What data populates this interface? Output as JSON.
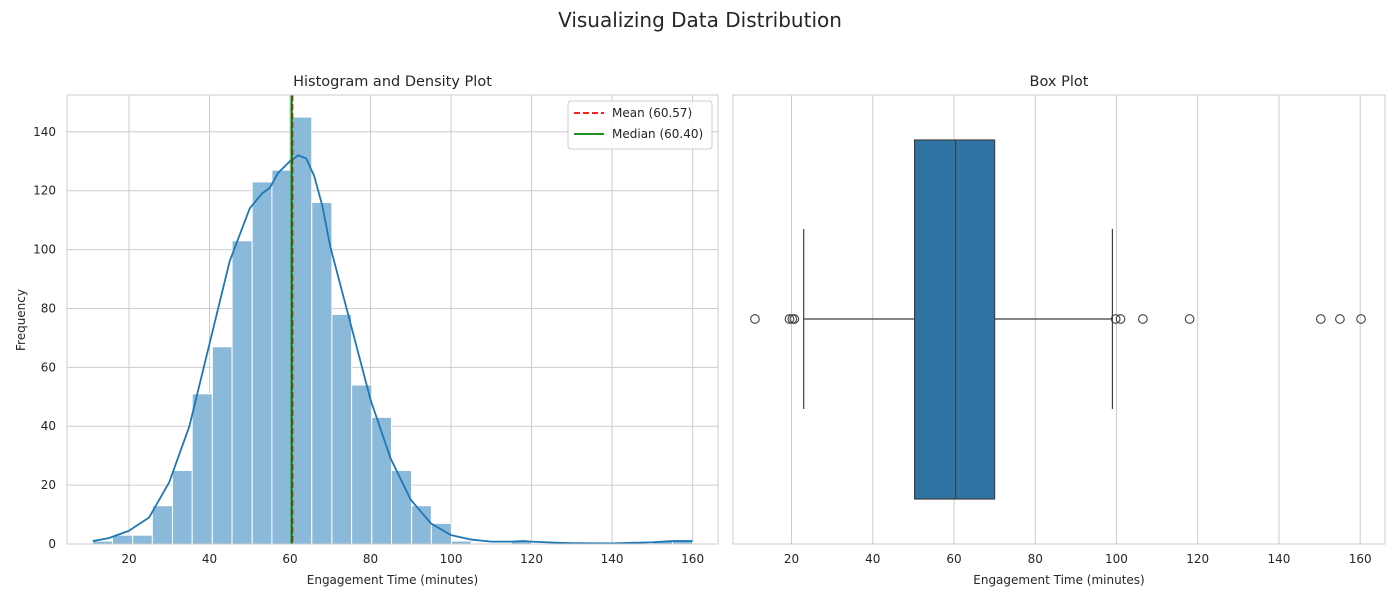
{
  "figure": {
    "suptitle": "Visualizing Data Distribution"
  },
  "chart_data": [
    {
      "type": "histogram",
      "title": "Histogram and Density Plot",
      "xlabel": "Engagement Time (minutes)",
      "ylabel": "Frequency",
      "xlim": [
        4.6,
        166.3
      ],
      "ylim": [
        0,
        152.5
      ],
      "xticks": [
        20,
        40,
        60,
        80,
        100,
        120,
        140,
        160
      ],
      "yticks": [
        0,
        20,
        40,
        60,
        80,
        100,
        120,
        140
      ],
      "grid": true,
      "bins": [
        {
          "x0": 11.0,
          "x1": 15.9,
          "count": 1
        },
        {
          "x0": 15.9,
          "x1": 20.9,
          "count": 3
        },
        {
          "x0": 20.9,
          "x1": 25.8,
          "count": 3
        },
        {
          "x0": 25.8,
          "x1": 30.8,
          "count": 13
        },
        {
          "x0": 30.8,
          "x1": 35.7,
          "count": 25
        },
        {
          "x0": 35.7,
          "x1": 40.7,
          "count": 51
        },
        {
          "x0": 40.7,
          "x1": 45.6,
          "count": 67
        },
        {
          "x0": 45.6,
          "x1": 50.6,
          "count": 103
        },
        {
          "x0": 50.6,
          "x1": 55.5,
          "count": 123
        },
        {
          "x0": 55.5,
          "x1": 60.5,
          "count": 127
        },
        {
          "x0": 60.5,
          "x1": 65.4,
          "count": 145
        },
        {
          "x0": 65.4,
          "x1": 70.4,
          "count": 116
        },
        {
          "x0": 70.4,
          "x1": 75.3,
          "count": 78
        },
        {
          "x0": 75.3,
          "x1": 80.3,
          "count": 54
        },
        {
          "x0": 80.3,
          "x1": 85.2,
          "count": 43
        },
        {
          "x0": 85.2,
          "x1": 90.2,
          "count": 25
        },
        {
          "x0": 90.2,
          "x1": 95.1,
          "count": 13
        },
        {
          "x0": 95.1,
          "x1": 100.1,
          "count": 7
        },
        {
          "x0": 100.1,
          "x1": 105.0,
          "count": 1
        },
        {
          "x0": 115.0,
          "x1": 120.0,
          "count": 1
        },
        {
          "x0": 150.0,
          "x1": 155.0,
          "count": 1
        },
        {
          "x0": 155.0,
          "x1": 160.0,
          "count": 1
        }
      ],
      "density_curve": {
        "x": [
          11,
          15,
          20,
          25,
          30,
          35,
          40,
          45,
          50,
          53,
          55,
          57,
          60,
          62,
          64,
          66,
          68,
          70,
          75,
          80,
          85,
          90,
          95,
          100,
          105,
          110,
          115,
          118,
          120,
          125,
          130,
          140,
          150,
          155,
          160
        ],
        "y": [
          1,
          2,
          4.5,
          9,
          21,
          40,
          68,
          96,
          114,
          119,
          121,
          126,
          130,
          132,
          131,
          125,
          115,
          101,
          75,
          49,
          29,
          15,
          7,
          3,
          1.5,
          0.8,
          0.8,
          1,
          0.8,
          0.5,
          0.3,
          0.2,
          0.6,
          1,
          1
        ]
      },
      "lines": [
        {
          "name": "Mean (60.57)",
          "x": 60.57,
          "color": "#ff0000",
          "style": "dashed"
        },
        {
          "name": "Median (60.40)",
          "x": 60.4,
          "color": "#008000",
          "style": "solid"
        }
      ],
      "bar_color": "#8ab9da",
      "curve_color": "#1f77b4",
      "legend_placement": "top-right"
    },
    {
      "type": "box",
      "title": "Box Plot",
      "xlabel": "Engagement Time (minutes)",
      "xlim": [
        5.6,
        166.1
      ],
      "xticks": [
        20,
        40,
        60,
        80,
        100,
        120,
        140,
        160
      ],
      "grid": true,
      "box": {
        "whisker_low": 23,
        "q1": 50.3,
        "median": 60.4,
        "q3": 70,
        "whisker_high": 99
      },
      "outliers": [
        11,
        19.5,
        20.2,
        20.7,
        99.8,
        101,
        106.5,
        118,
        150.3,
        155,
        160.2
      ],
      "box_color": "#2e74a4"
    }
  ]
}
